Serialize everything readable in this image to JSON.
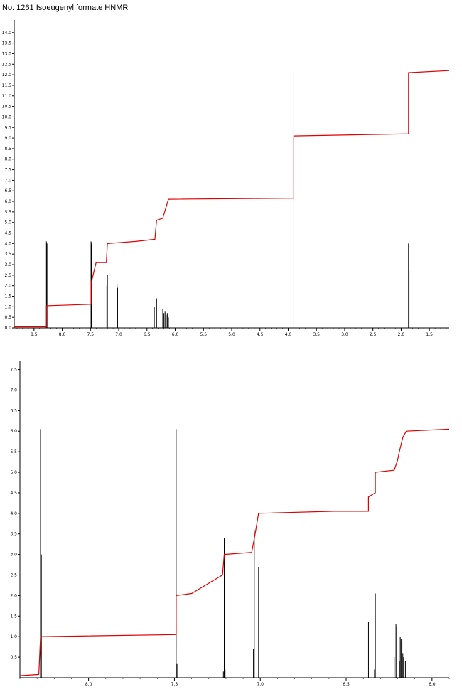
{
  "title": "No. 1261 Isoeugenyl formate HNMR",
  "chart_data": [
    {
      "type": "line",
      "panel": "full-spectrum",
      "title": "No. 1261 Isoeugenyl formate HNMR",
      "xlabel": "",
      "ylabel": "",
      "x_reversed": true,
      "xlim": [
        8.85,
        1.15
      ],
      "ylim": [
        0,
        14.6
      ],
      "x_ticks": [
        "8.5",
        "8.0",
        "7.5",
        "7.0",
        "6.5",
        "6.0",
        "5.5",
        "5.0",
        "4.5",
        "4.0",
        "3.5",
        "3.0",
        "2.5",
        "2.0",
        "1.5"
      ],
      "y_ticks": [
        "0.0",
        "0.5",
        "1.0",
        "1.5",
        "2.0",
        "2.5",
        "3.0",
        "3.5",
        "4.0",
        "4.5",
        "5.0",
        "5.5",
        "6.0",
        "6.5",
        "7.0",
        "7.5",
        "8.0",
        "8.5",
        "9.0",
        "9.5",
        "10.0",
        "10.5",
        "11.0",
        "11.5",
        "12.0",
        "12.5",
        "13.0",
        "13.5",
        "14.0"
      ],
      "peaks": [
        {
          "x": 8.28,
          "y": 4.1
        },
        {
          "x": 8.27,
          "y": 4.0
        },
        {
          "x": 7.49,
          "y": 4.1
        },
        {
          "x": 7.48,
          "y": 4.0
        },
        {
          "x": 7.21,
          "y": 2.0
        },
        {
          "x": 7.2,
          "y": 2.5
        },
        {
          "x": 7.03,
          "y": 2.1
        },
        {
          "x": 7.02,
          "y": 1.9
        },
        {
          "x": 6.37,
          "y": 1.0
        },
        {
          "x": 6.33,
          "y": 1.4
        },
        {
          "x": 6.22,
          "y": 0.9
        },
        {
          "x": 6.2,
          "y": 0.7
        },
        {
          "x": 6.18,
          "y": 0.8
        },
        {
          "x": 6.16,
          "y": 0.6
        },
        {
          "x": 6.14,
          "y": 0.7
        },
        {
          "x": 6.12,
          "y": 0.5
        },
        {
          "x": 3.9,
          "y": 12.1
        },
        {
          "x": 1.87,
          "y": 4.0
        },
        {
          "x": 1.86,
          "y": 2.7
        }
      ],
      "integral": [
        [
          8.85,
          0.05
        ],
        [
          8.28,
          0.05
        ],
        [
          8.28,
          1.05
        ],
        [
          7.49,
          1.12
        ],
        [
          7.49,
          2.1
        ],
        [
          7.4,
          3.1
        ],
        [
          7.22,
          3.1
        ],
        [
          7.2,
          4.0
        ],
        [
          6.7,
          4.1
        ],
        [
          6.36,
          4.2
        ],
        [
          6.33,
          5.1
        ],
        [
          6.22,
          5.2
        ],
        [
          6.12,
          6.1
        ],
        [
          3.9,
          6.15
        ],
        [
          3.9,
          9.1
        ],
        [
          1.87,
          9.2
        ],
        [
          1.87,
          12.1
        ],
        [
          1.15,
          12.2
        ]
      ]
    },
    {
      "type": "line",
      "panel": "expanded-aromatic",
      "title": "",
      "xlabel": "",
      "ylabel": "",
      "x_reversed": true,
      "xlim": [
        8.4,
        5.9
      ],
      "ylim": [
        0,
        7.7
      ],
      "x_ticks": [
        "8.0",
        "7.5",
        "7.0",
        "6.5",
        "6.0"
      ],
      "y_ticks": [
        "0.5",
        "1.0",
        "1.5",
        "2.0",
        "2.5",
        "3.0",
        "3.5",
        "4.0",
        "4.5",
        "5.0",
        "5.5",
        "6.0",
        "6.5",
        "7.0",
        "7.5"
      ],
      "peaks": [
        {
          "x": 8.28,
          "y": 6.05
        },
        {
          "x": 8.275,
          "y": 3.0
        },
        {
          "x": 7.49,
          "y": 6.05
        },
        {
          "x": 7.485,
          "y": 0.35
        },
        {
          "x": 7.21,
          "y": 3.4
        },
        {
          "x": 7.205,
          "y": 0.2
        },
        {
          "x": 7.215,
          "y": 0.15
        },
        {
          "x": 7.04,
          "y": 0.7
        },
        {
          "x": 7.035,
          "y": 3.6
        },
        {
          "x": 7.01,
          "y": 2.7
        },
        {
          "x": 6.37,
          "y": 1.35
        },
        {
          "x": 6.33,
          "y": 2.05
        },
        {
          "x": 6.335,
          "y": 0.2
        },
        {
          "x": 6.22,
          "y": 0.5
        },
        {
          "x": 6.21,
          "y": 1.3
        },
        {
          "x": 6.205,
          "y": 1.25
        },
        {
          "x": 6.19,
          "y": 0.4
        },
        {
          "x": 6.185,
          "y": 1.0
        },
        {
          "x": 6.18,
          "y": 0.95
        },
        {
          "x": 6.175,
          "y": 0.9
        },
        {
          "x": 6.17,
          "y": 0.6
        },
        {
          "x": 6.165,
          "y": 0.5
        },
        {
          "x": 6.155,
          "y": 0.4
        }
      ],
      "integral": [
        [
          8.4,
          0.05
        ],
        [
          8.29,
          0.08
        ],
        [
          8.28,
          1.0
        ],
        [
          7.49,
          1.05
        ],
        [
          7.49,
          2.0
        ],
        [
          7.4,
          2.05
        ],
        [
          7.22,
          2.5
        ],
        [
          7.21,
          3.0
        ],
        [
          7.05,
          3.05
        ],
        [
          7.03,
          3.5
        ],
        [
          7.01,
          4.0
        ],
        [
          6.57,
          4.05
        ],
        [
          6.37,
          4.05
        ],
        [
          6.37,
          4.4
        ],
        [
          6.33,
          4.5
        ],
        [
          6.33,
          5.0
        ],
        [
          6.22,
          5.05
        ],
        [
          6.2,
          5.3
        ],
        [
          6.19,
          5.5
        ],
        [
          6.17,
          5.85
        ],
        [
          6.15,
          6.0
        ],
        [
          5.9,
          6.05
        ]
      ]
    }
  ]
}
